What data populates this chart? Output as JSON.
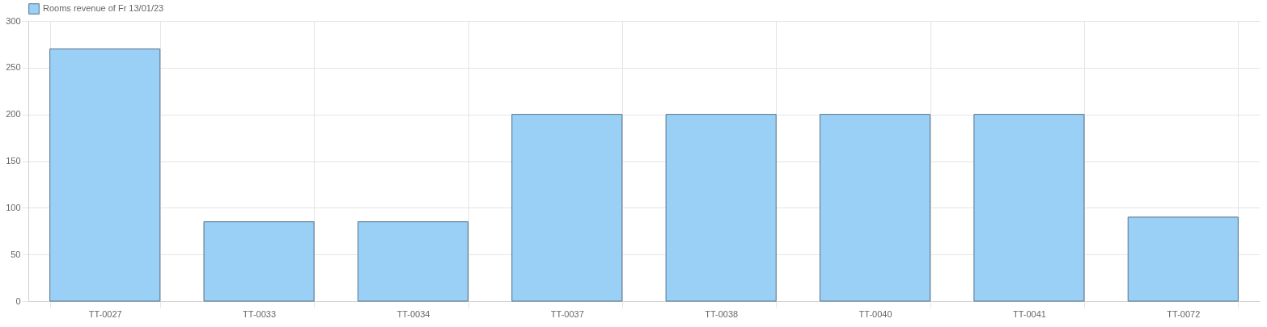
{
  "chart_data": {
    "type": "bar",
    "categories": [
      "TT-0027",
      "TT-0033",
      "TT-0034",
      "TT-0037",
      "TT-0038",
      "TT-0040",
      "TT-0041",
      "TT-0072"
    ],
    "series": [
      {
        "name": "Rooms revenue of Fr 13/01/23",
        "color": "#9ad0f5",
        "values": [
          270,
          85,
          85,
          200,
          200,
          200,
          200,
          90
        ]
      }
    ],
    "ylim": [
      0,
      300
    ],
    "yticks": [
      0,
      50,
      100,
      150,
      200,
      250,
      300
    ],
    "grid": true,
    "legend": "top"
  }
}
